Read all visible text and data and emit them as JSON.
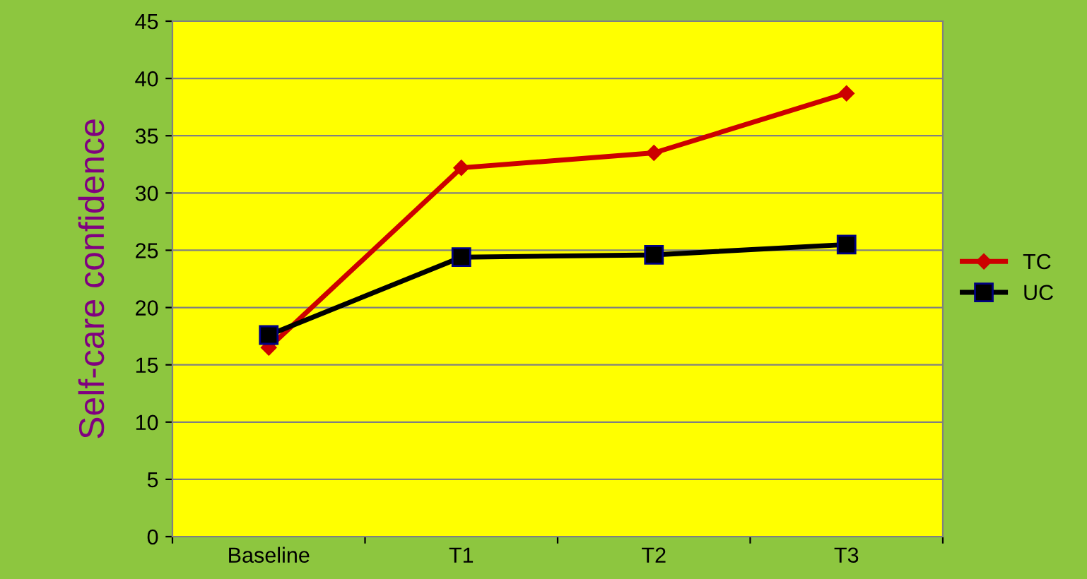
{
  "chart_data": {
    "type": "line",
    "ylabel": "Self-care confidence",
    "categories": [
      "Baseline",
      "T1",
      "T2",
      "T3"
    ],
    "series": [
      {
        "name": "TC",
        "color": "#cc0000",
        "values": [
          16.5,
          32.2,
          33.5,
          38.7
        ],
        "marker": "diamond"
      },
      {
        "name": "UC",
        "color": "#000000",
        "values": [
          17.6,
          24.4,
          24.6,
          25.5
        ],
        "marker": "square"
      }
    ],
    "ylim": [
      0,
      45
    ],
    "yticks": [
      0,
      5,
      10,
      15,
      20,
      25,
      30,
      35,
      40,
      45
    ],
    "grid": "y",
    "legend": "right",
    "line_style": "solid"
  }
}
